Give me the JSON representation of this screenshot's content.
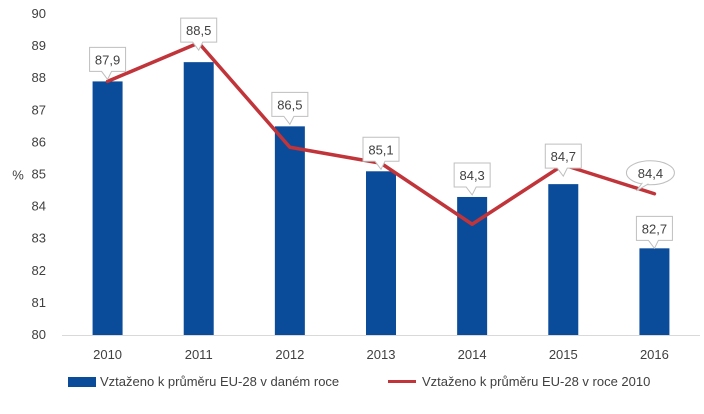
{
  "chart_data": {
    "type": "bar",
    "ylabel": "%",
    "ylim": [
      80,
      90
    ],
    "yticks": [
      80,
      81,
      82,
      83,
      84,
      85,
      86,
      87,
      88,
      89,
      90
    ],
    "categories": [
      "2010",
      "2011",
      "2012",
      "2013",
      "2014",
      "2015",
      "2016"
    ],
    "grid": false,
    "legend": "bottom",
    "series": [
      {
        "name": "Vztaženo k průměru EU-28 v daném roce",
        "type": "bar",
        "color": "#0a4c9a",
        "values": [
          87.9,
          88.5,
          86.5,
          85.1,
          84.3,
          84.7,
          82.7
        ],
        "labels": [
          "87,9",
          "88,5",
          "86,5",
          "85,1",
          "84,3",
          "84,7",
          "82,7"
        ]
      },
      {
        "name": "Vztaženo k průměru EU-28 v roce 2010",
        "type": "line",
        "color": "#c0343a",
        "values": [
          87.9,
          89.1,
          85.85,
          85.35,
          83.45,
          85.3,
          84.4
        ],
        "labels": [
          "",
          "",
          "",
          "",
          "",
          "",
          "84,4"
        ]
      }
    ]
  }
}
